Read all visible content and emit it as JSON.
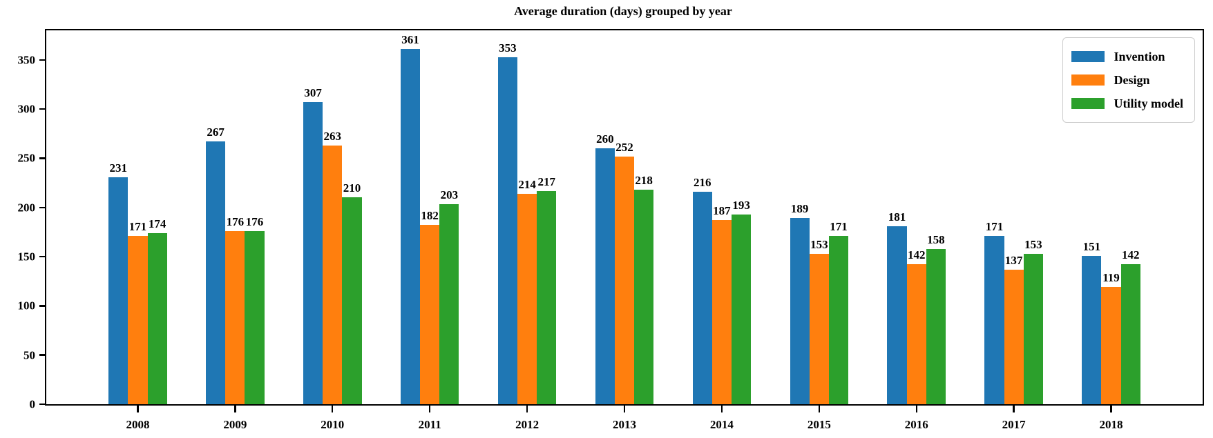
{
  "title": "Average duration (days) grouped by year",
  "colors": {
    "invention": "#1f77b4",
    "design": "#ff7f0e",
    "utility_model": "#2ca02c",
    "axis": "#000000",
    "legend_border": "#cccccc",
    "background": "#ffffff"
  },
  "legend": {
    "position": "upper right",
    "entries": [
      "Invention",
      "Design",
      "Utility model"
    ]
  },
  "chart_data": {
    "type": "bar",
    "title": "Average duration (days) grouped by year",
    "xlabel": "",
    "ylabel": "",
    "categories": [
      "2008",
      "2009",
      "2010",
      "2011",
      "2012",
      "2013",
      "2014",
      "2015",
      "2016",
      "2017",
      "2018"
    ],
    "series": [
      {
        "name": "Invention",
        "color": "#1f77b4",
        "values": [
          231,
          267,
          307,
          361,
          353,
          260,
          216,
          189,
          181,
          171,
          151
        ]
      },
      {
        "name": "Design",
        "color": "#ff7f0e",
        "values": [
          171,
          176,
          263,
          182,
          214,
          252,
          187,
          153,
          142,
          137,
          119
        ]
      },
      {
        "name": "Utility model",
        "color": "#2ca02c",
        "values": [
          174,
          176,
          210,
          203,
          217,
          218,
          193,
          171,
          158,
          153,
          142
        ]
      }
    ],
    "yticks": [
      0,
      50,
      100,
      150,
      200,
      250,
      300,
      350
    ],
    "ylim": [
      0,
      380
    ],
    "grid": false,
    "bar_value_labels": true,
    "legend_position": "upper right"
  }
}
